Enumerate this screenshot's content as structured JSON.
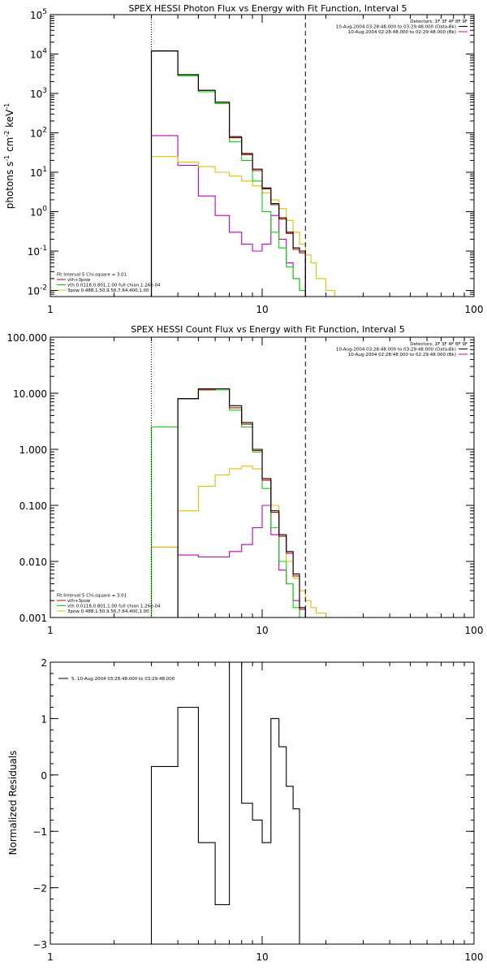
{
  "chart_data": [
    {
      "type": "line",
      "id": "photon",
      "title": "SPEX HESSI Photon Flux vs Energy with Fit Function, Interval 5",
      "ylabel_parts": [
        "photons s",
        "-1",
        " cm",
        "-2",
        " keV",
        "-1"
      ],
      "xlabel": "",
      "xscale": "log",
      "yscale": "log",
      "xlim": [
        1,
        100
      ],
      "ylim": [
        0.007,
        100000
      ],
      "xticks": [
        1,
        10,
        100
      ],
      "xtick_labels": [
        "1",
        "10",
        "100"
      ],
      "yticks": [
        0.01,
        0.1,
        1,
        10,
        100,
        1000,
        10000,
        100000
      ],
      "ytick_labels": [
        [
          "10",
          "-2"
        ],
        [
          "10",
          "-1"
        ],
        [
          "10",
          "0"
        ],
        [
          "10",
          "1"
        ],
        [
          "10",
          "2"
        ],
        [
          "10",
          "3"
        ],
        [
          "10",
          "4"
        ],
        [
          "10",
          "5"
        ]
      ],
      "vlines": [
        {
          "x": 3.0,
          "style": "dotted"
        },
        {
          "x": 16.0,
          "style": "dashed"
        }
      ],
      "legend_topright": [
        "Detectors: 1F 3F 4F 8F 9F",
        "10-Aug-2004 03:28:48.000 to 03:29:48.000 (Data-Bk)",
        "10-Aug-2004 02:28:48.000 to 02:29:48.000 (Bk)"
      ],
      "legend_topright_colors": [
        "",
        "#000000",
        "#c000c0"
      ],
      "legend_bottomleft": [
        "Fit Interval 5   Chi-square = 3.01",
        "vth+3pow",
        "vth 0.0118,0.801,1.00  full chian 1.26e-04",
        "3pow 0.488,1.50,9.56,7.64,400,1.00"
      ],
      "legend_bottomleft_colors": [
        "",
        "#c00000",
        "#00d800",
        "#e0c000"
      ],
      "series": [
        {
          "name": "Data-Bk",
          "color": "#000000",
          "edges": [
            3.0,
            4.0,
            5.0,
            6.0,
            7.0,
            8.0,
            9.0,
            10.0,
            11.0,
            12.0,
            13.0,
            14.0,
            15.0,
            16.0
          ],
          "values": [
            12000,
            3000,
            1200,
            600,
            80,
            30,
            12,
            4,
            1.6,
            0.7,
            0.3,
            0.12,
            0.1
          ],
          "draw_from": 0
        },
        {
          "name": "vth+3pow",
          "color": "#c00000",
          "edges": [
            3.0,
            4.0,
            5.0,
            6.0,
            7.0,
            8.0,
            9.0,
            10.0,
            11.0,
            12.0,
            13.0,
            14.0,
            15.0,
            16.0
          ],
          "values": [
            12000,
            3000,
            1200,
            600,
            75,
            28,
            11,
            3.8,
            1.5,
            0.65,
            0.28,
            0.11,
            0.09
          ],
          "draw_from": 0
        },
        {
          "name": "vth",
          "color": "#00d800",
          "edges": [
            3.0,
            4.0,
            5.0,
            6.0,
            7.0,
            8.0,
            9.0,
            10.0,
            11.0,
            12.0,
            13.0,
            14.0,
            15.0,
            16.0
          ],
          "values": [
            12000,
            2800,
            1100,
            550,
            60,
            20,
            6,
            1,
            0.3,
            0.12,
            0.04,
            0.02,
            0.01
          ],
          "draw_from": 0
        },
        {
          "name": "3pow",
          "color": "#e0c000",
          "edges": [
            3.0,
            4.0,
            5.0,
            6.0,
            7.0,
            8.0,
            9.0,
            10.0,
            11.0,
            12.0,
            13.0,
            14.0,
            15.0,
            16.0,
            17.0,
            18.0,
            20.0,
            22.0
          ],
          "values": [
            25,
            18,
            14,
            10,
            8,
            6,
            4.5,
            3,
            2,
            1.2,
            0.6,
            0.3,
            0.15,
            0.08,
            0.05,
            0.02,
            0.01
          ],
          "draw_from": 0
        },
        {
          "name": "Bk",
          "color": "#c000c0",
          "edges": [
            3.0,
            4.0,
            5.0,
            6.0,
            7.0,
            8.0,
            9.0,
            10.0,
            11.0,
            12.0,
            13.0,
            14.0,
            15.0,
            16.0
          ],
          "values": [
            85,
            15,
            2.5,
            0.8,
            0.3,
            0.15,
            0.1,
            0.15,
            0.8,
            0.2,
            0.05,
            0.02,
            0.01
          ],
          "draw_from": 0
        }
      ]
    },
    {
      "type": "line",
      "id": "count",
      "title": "SPEX HESSI Count Flux vs Energy with Fit Function, Interval 5",
      "ylabel_parts": [],
      "xlabel": "",
      "xscale": "log",
      "yscale": "log",
      "xlim": [
        1,
        100
      ],
      "ylim": [
        0.001,
        100
      ],
      "xticks": [
        1,
        10,
        100
      ],
      "xtick_labels": [
        "1",
        "10",
        "100"
      ],
      "yticks": [
        0.001,
        0.01,
        0.1,
        1,
        10,
        100
      ],
      "ytick_labels": [
        [
          "0.001"
        ],
        [
          "0.010"
        ],
        [
          "0.100"
        ],
        [
          "1.000"
        ],
        [
          "10.000"
        ],
        [
          "100.000"
        ]
      ],
      "vlines": [
        {
          "x": 3.0,
          "style": "dotted"
        },
        {
          "x": 16.0,
          "style": "dashed"
        }
      ],
      "legend_topright": [
        "Detectors: 1F 3F 4F 8F 9F",
        "10-Aug-2004 03:28:48.000 to 03:29:48.000 (Data-Bk)",
        "10-Aug-2004 02:28:48.000 to 02:29:48.000 (Bk)"
      ],
      "legend_topright_colors": [
        "",
        "#000000",
        "#c000c0"
      ],
      "legend_bottomleft": [
        "Fit Interval 5   Chi-square = 3.01",
        "vth+3pow",
        "vth 0.0118,0.801,1.00  full chian 1.26e-04",
        "3pow 0.488,1.50,9.56,7.64,400,1.00"
      ],
      "legend_bottomleft_colors": [
        "",
        "#c00000",
        "#00d800",
        "#e0c000"
      ],
      "series": [
        {
          "name": "Data-Bk",
          "color": "#000000",
          "edges": [
            3.0,
            4.0,
            5.0,
            6.0,
            7.0,
            8.0,
            9.0,
            10.0,
            11.0,
            12.0,
            13.0,
            14.0,
            15.0,
            16.0
          ],
          "values": [
            2.5,
            8,
            12,
            12,
            6,
            3,
            1,
            0.3,
            0.08,
            0.03,
            0.015,
            0.006,
            0.0015
          ],
          "draw_from": 1
        },
        {
          "name": "vth+3pow",
          "color": "#c00000",
          "edges": [
            3.0,
            4.0,
            5.0,
            6.0,
            7.0,
            8.0,
            9.0,
            10.0,
            11.0,
            12.0,
            13.0,
            14.0,
            15.0,
            16.0
          ],
          "values": [
            2.5,
            8,
            11.5,
            12,
            5.5,
            2.8,
            0.95,
            0.28,
            0.075,
            0.028,
            0.014,
            0.0055,
            0.0014
          ],
          "draw_from": 1
        },
        {
          "name": "vth",
          "color": "#00d800",
          "edges": [
            3.0,
            4.0,
            5.0,
            6.0,
            7.0,
            8.0,
            9.0,
            10.0,
            11.0,
            12.0,
            13.0,
            14.0,
            15.0,
            16.0
          ],
          "values": [
            2.5,
            8,
            11.5,
            11.5,
            5,
            2.5,
            0.9,
            0.2,
            0.04,
            0.01,
            0.004,
            0.0015,
            0.001
          ],
          "draw_from": 0
        },
        {
          "name": "3pow",
          "color": "#e0c000",
          "edges": [
            3.0,
            4.0,
            5.0,
            6.0,
            7.0,
            8.0,
            9.0,
            10.0,
            11.0,
            12.0,
            13.0,
            14.0,
            15.0,
            16.0,
            17.0,
            18.0,
            20.0,
            22.0
          ],
          "values": [
            0.018,
            0.08,
            0.22,
            0.35,
            0.45,
            0.5,
            0.45,
            0.3,
            0.1,
            0.03,
            0.01,
            0.005,
            0.003,
            0.002,
            0.0015,
            0.0012,
            0.001
          ],
          "draw_from": 0
        },
        {
          "name": "Bk",
          "color": "#c000c0",
          "edges": [
            3.0,
            4.0,
            5.0,
            6.0,
            7.0,
            8.0,
            9.0,
            10.0,
            11.0,
            12.0,
            13.0,
            14.0,
            15.0,
            16.0
          ],
          "values": [
            0.018,
            0.013,
            0.012,
            0.012,
            0.015,
            0.02,
            0.04,
            0.1,
            0.03,
            0.007,
            0.004,
            0.002,
            0.001
          ],
          "draw_from": 0
        }
      ]
    },
    {
      "type": "line",
      "id": "residuals",
      "title": "",
      "ylabel_parts": [
        "Normalized Residuals"
      ],
      "xlabel": "",
      "xscale": "log",
      "yscale": "linear",
      "xlim": [
        1,
        100
      ],
      "ylim": [
        -3,
        2
      ],
      "xticks": [
        1,
        10,
        100
      ],
      "xtick_labels": [
        "1",
        "10",
        "100"
      ],
      "yticks": [
        -3,
        -2,
        -1,
        0,
        1,
        2
      ],
      "ytick_labels": [
        [
          "−3"
        ],
        [
          "−2"
        ],
        [
          "−1"
        ],
        [
          "0"
        ],
        [
          "1"
        ],
        [
          "2"
        ]
      ],
      "vlines": [],
      "legend_topleft": [
        "5. 10-Aug-2004 03:28:48.000 to 03:29:48.000"
      ],
      "series": [
        {
          "name": "5. 10-Aug-2004 03:28:48.000 to 03:29:48.000",
          "color": "#000000",
          "edges": [
            3.0,
            4.0,
            5.0,
            6.0,
            7.0,
            8.0,
            9.0,
            10.0,
            11.0,
            12.0,
            13.0,
            14.0,
            15.0,
            16.0
          ],
          "values": [
            0.15,
            1.2,
            -1.2,
            -2.3,
            2.0,
            -0.5,
            -0.8,
            -1.2,
            1.0,
            0.5,
            -0.2,
            -0.6,
            -3.0
          ],
          "draw_from": 0,
          "close_to_min": true
        }
      ]
    }
  ]
}
